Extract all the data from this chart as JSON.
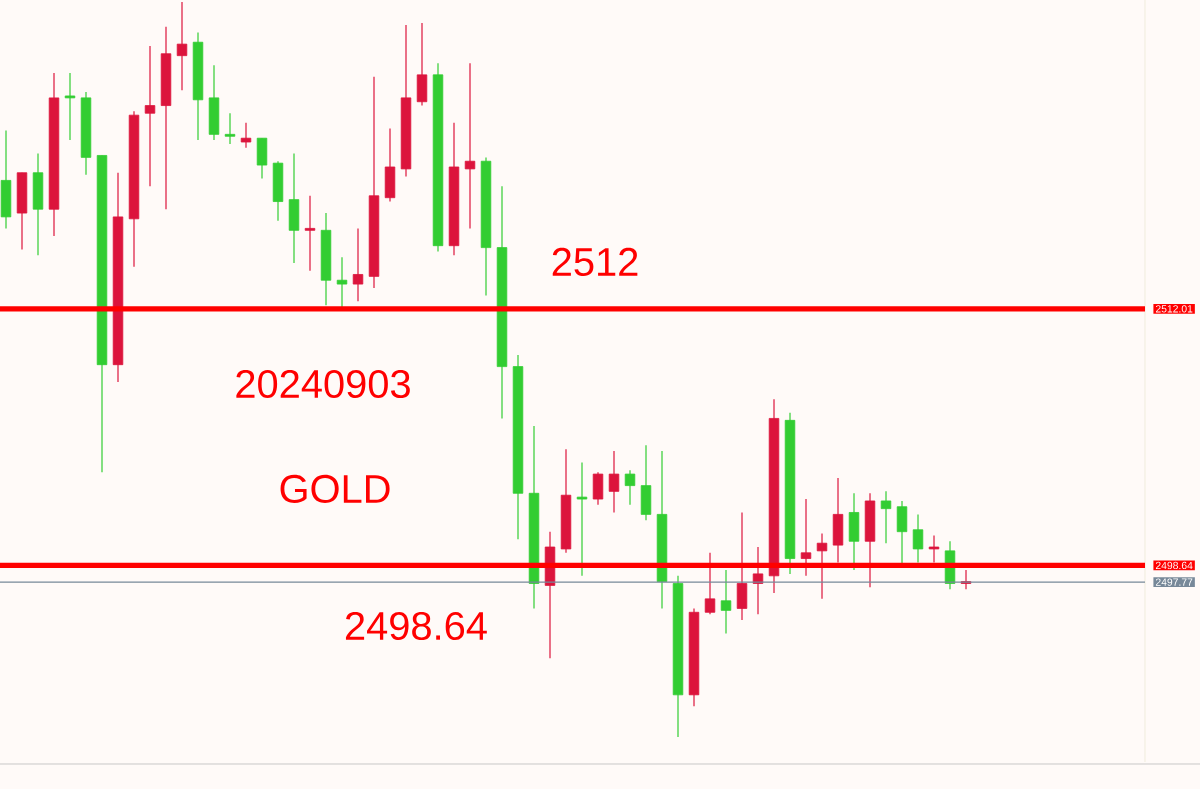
{
  "chart_data": {
    "type": "candlestick",
    "annotations": [
      "2512",
      "20240903",
      "GOLD",
      "2498.64"
    ],
    "categories": [
      null,
      null,
      null,
      null,
      null,
      null,
      null,
      null,
      null,
      null,
      null,
      null,
      null,
      null,
      null,
      null,
      null,
      null,
      null,
      null,
      null,
      null,
      null,
      null,
      null,
      null,
      null,
      null,
      null,
      null,
      null,
      null,
      null,
      null,
      null,
      null,
      null,
      null,
      null,
      null,
      null,
      null,
      null,
      null,
      null,
      null,
      null,
      null,
      null,
      null,
      null,
      null,
      null,
      null,
      null,
      null,
      null,
      null,
      null,
      null,
      null
    ],
    "ohlc": [
      [
        2518.7,
        2521.3,
        2516.2,
        2516.8
      ],
      [
        2517.0,
        2519.1,
        2515.1,
        2519.1
      ],
      [
        2519.1,
        2520.1,
        2514.8,
        2517.2
      ],
      [
        2517.2,
        2524.3,
        2515.8,
        2523.0
      ],
      [
        2523.1,
        2524.3,
        2520.8,
        2523.0
      ],
      [
        2523.0,
        2523.3,
        2519.0,
        2519.9
      ],
      [
        2520.0,
        2520.0,
        2503.5,
        2509.1
      ],
      [
        2509.1,
        2519.1,
        2508.2,
        2516.8
      ],
      [
        2516.7,
        2522.3,
        2514.2,
        2522.1
      ],
      [
        2522.2,
        2525.7,
        2518.4,
        2522.6
      ],
      [
        2522.6,
        2526.7,
        2517.2,
        2525.3
      ],
      [
        2525.2,
        2528.0,
        2523.4,
        2525.8
      ],
      [
        2525.9,
        2526.4,
        2520.8,
        2522.9
      ],
      [
        2523.0,
        2524.7,
        2520.8,
        2521.1
      ],
      [
        2521.1,
        2522.2,
        2520.6,
        2521.0
      ],
      [
        2520.7,
        2521.7,
        2520.4,
        2520.9
      ],
      [
        2520.9,
        2520.9,
        2518.8,
        2519.5
      ],
      [
        2519.6,
        2519.7,
        2516.6,
        2517.6
      ],
      [
        2517.7,
        2520.1,
        2514.4,
        2516.1
      ],
      [
        2516.1,
        2517.9,
        2514.0,
        2516.2
      ],
      [
        2516.1,
        2517.0,
        2512.2,
        2513.5
      ],
      [
        2513.5,
        2514.7,
        2512.1,
        2513.3
      ],
      [
        2513.3,
        2516.2,
        2512.4,
        2513.8
      ],
      [
        2513.7,
        2524.1,
        2513.1,
        2517.9
      ],
      [
        2517.8,
        2521.4,
        2517.6,
        2519.4
      ],
      [
        2519.3,
        2526.8,
        2518.9,
        2523.0
      ],
      [
        2522.8,
        2526.9,
        2522.6,
        2524.2
      ],
      [
        2524.2,
        2524.8,
        2515.0,
        2515.3
      ],
      [
        2515.3,
        2521.7,
        2514.8,
        2519.4
      ],
      [
        2519.3,
        2524.8,
        2516.2,
        2519.7
      ],
      [
        2519.7,
        2519.9,
        2512.7,
        2515.2
      ],
      [
        2515.2,
        2518.4,
        2506.3,
        2509.0
      ],
      [
        2509.0,
        2509.6,
        2500.0,
        2502.4
      ],
      [
        2502.4,
        2505.9,
        2496.4,
        2497.7
      ],
      [
        2497.6,
        2500.4,
        2493.8,
        2499.6
      ],
      [
        2499.5,
        2504.7,
        2499.3,
        2502.3
      ],
      [
        2502.2,
        2504.0,
        2498.1,
        2502.1
      ],
      [
        2502.1,
        2503.5,
        2501.8,
        2503.4
      ],
      [
        2502.5,
        2504.6,
        2501.4,
        2503.4
      ],
      [
        2503.4,
        2503.6,
        2501.8,
        2502.8
      ],
      [
        2502.8,
        2504.9,
        2501.0,
        2501.3
      ],
      [
        2501.3,
        2504.6,
        2496.4,
        2497.8
      ],
      [
        2497.7,
        2498.1,
        2489.7,
        2491.9
      ],
      [
        2491.9,
        2496.4,
        2491.3,
        2496.2
      ],
      [
        2496.2,
        2499.3,
        2496.1,
        2496.9
      ],
      [
        2496.8,
        2498.4,
        2495.1,
        2496.3
      ],
      [
        2496.4,
        2501.4,
        2495.8,
        2497.7
      ],
      [
        2497.7,
        2499.6,
        2496.1,
        2498.2
      ],
      [
        2498.1,
        2507.3,
        2497.2,
        2506.3
      ],
      [
        2506.2,
        2506.6,
        2498.2,
        2499.0
      ],
      [
        2499.0,
        2502.1,
        2498.1,
        2499.3
      ],
      [
        2499.4,
        2500.3,
        2496.9,
        2499.8
      ],
      [
        2499.7,
        2503.2,
        2498.8,
        2501.3
      ],
      [
        2501.4,
        2502.4,
        2498.4,
        2499.9
      ],
      [
        2499.9,
        2502.4,
        2497.5,
        2502.0
      ],
      [
        2502.0,
        2502.5,
        2499.8,
        2501.6
      ],
      [
        2501.7,
        2502.0,
        2498.7,
        2500.4
      ],
      [
        2500.5,
        2501.3,
        2498.8,
        2499.5
      ],
      [
        2499.5,
        2500.2,
        2498.8,
        2499.6
      ],
      [
        2499.4,
        2499.9,
        2497.4,
        2497.7
      ],
      [
        2497.7,
        2498.4,
        2497.4,
        2497.8
      ]
    ],
    "colors": [
      "#32cd32",
      "#dc143c",
      "#32cd32",
      "#dc143c",
      "#32cd32",
      "#32cd32",
      "#32cd32",
      "#dc143c",
      "#dc143c",
      "#dc143c",
      "#dc143c",
      "#dc143c",
      "#32cd32",
      "#32cd32",
      "#32cd32",
      "#dc143c",
      "#32cd32",
      "#32cd32",
      "#32cd32",
      "#dc143c",
      "#32cd32",
      "#32cd32",
      "#dc143c",
      "#dc143c",
      "#dc143c",
      "#dc143c",
      "#dc143c",
      "#32cd32",
      "#dc143c",
      "#dc143c",
      "#32cd32",
      "#32cd32",
      "#32cd32",
      "#32cd32",
      "#dc143c",
      "#dc143c",
      "#32cd32",
      "#dc143c",
      "#dc143c",
      "#32cd32",
      "#32cd32",
      "#32cd32",
      "#32cd32",
      "#dc143c",
      "#dc143c",
      "#32cd32",
      "#dc143c",
      "#dc143c",
      "#dc143c",
      "#32cd32",
      "#dc143c",
      "#dc143c",
      "#dc143c",
      "#32cd32",
      "#dc143c",
      "#32cd32",
      "#32cd32",
      "#32cd32",
      "#dc143c",
      "#32cd32",
      "#dc143c"
    ],
    "ylim": [
      2488.4,
      2528.1
    ],
    "ref_lines": [
      {
        "axis": "y",
        "value": 2512.01,
        "label": "2512.01",
        "color": "#ff0000"
      },
      {
        "axis": "y",
        "value": 2498.64,
        "label": "2498.64",
        "color": "#ff0000"
      },
      {
        "axis": "y",
        "value": 2497.77,
        "label": "2497.77",
        "color": "#778899"
      }
    ]
  }
}
